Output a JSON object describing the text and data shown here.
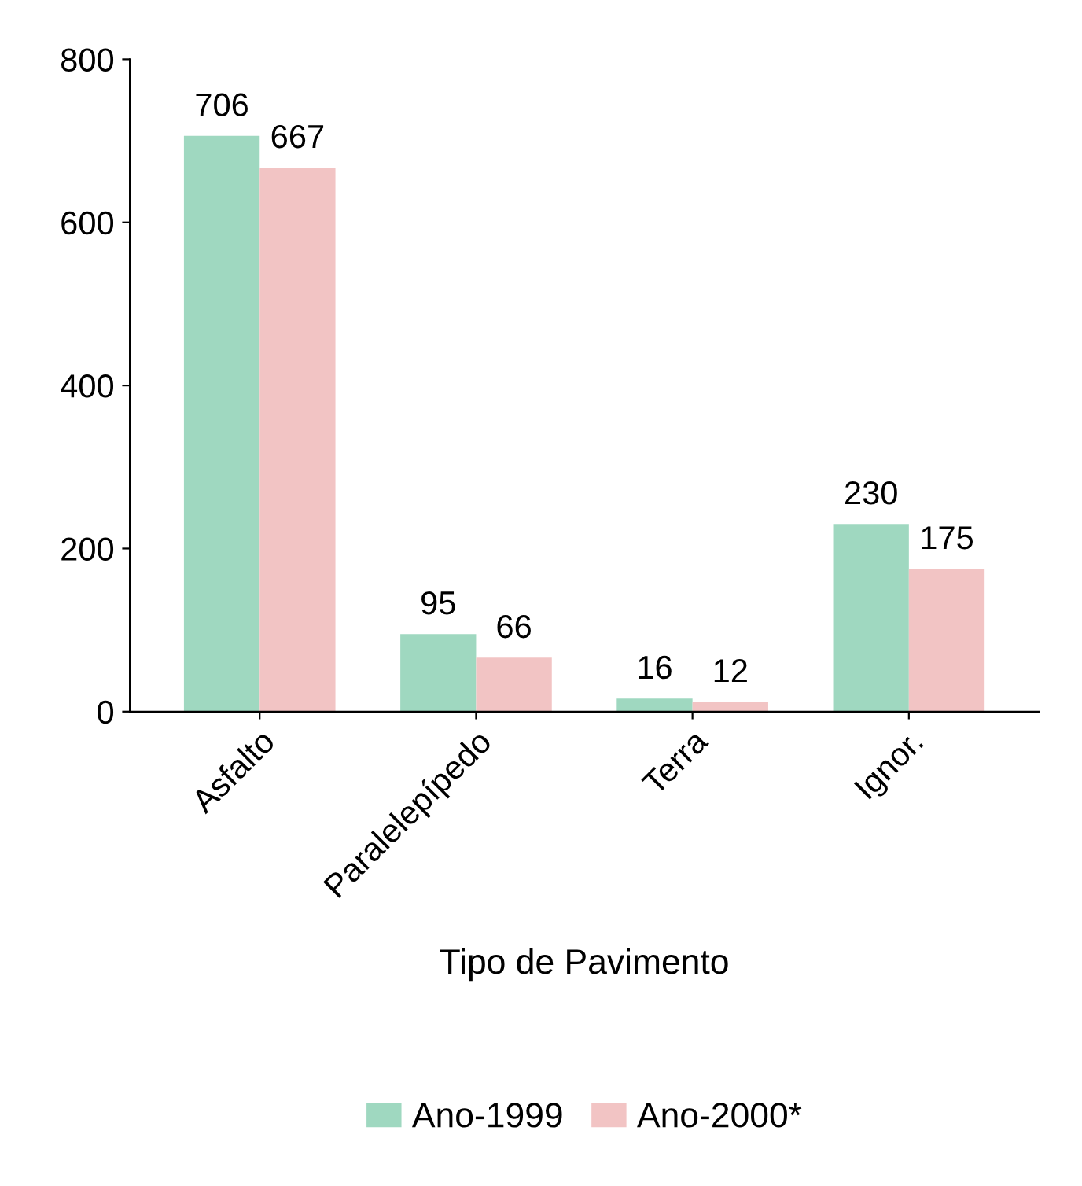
{
  "chart_data": {
    "type": "bar",
    "xlabel": "Tipo de Pavimento",
    "categories": [
      "Asfalto",
      "Paralelepípedo",
      "Terra",
      "Ignor."
    ],
    "series": [
      {
        "name": "Ano-1999",
        "color": "#9fd8c0",
        "values": [
          706,
          95,
          16,
          230
        ]
      },
      {
        "name": "Ano-2000*",
        "color": "#f2c4c4",
        "values": [
          667,
          66,
          12,
          175
        ]
      }
    ],
    "ylim": [
      0,
      800
    ],
    "yticks": [
      0,
      200,
      400,
      600,
      800
    ],
    "data_labels": true,
    "legend": "bottom",
    "grid": false
  }
}
